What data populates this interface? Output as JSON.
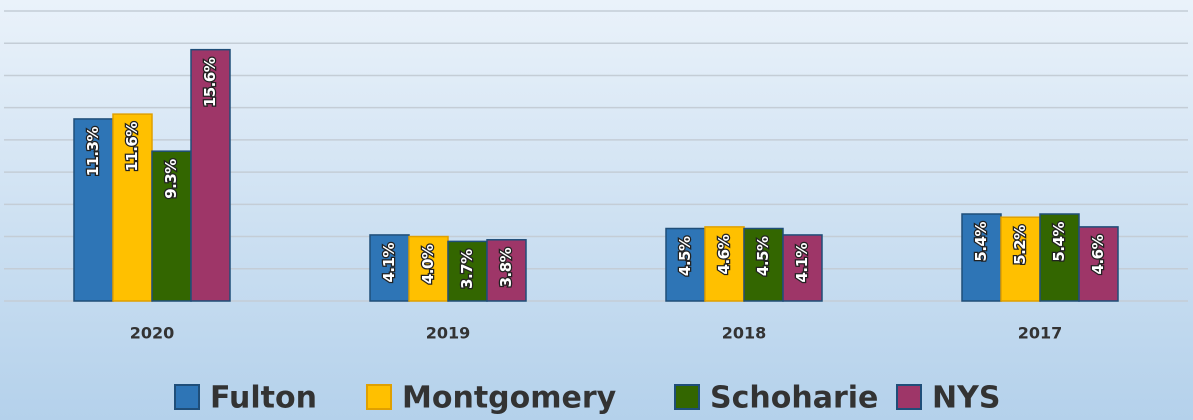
{
  "chart_data": {
    "type": "bar",
    "categories": [
      "2020",
      "2019",
      "2018",
      "2017"
    ],
    "series": [
      {
        "name": "Fulton",
        "color": "#2e75b6",
        "values": [
          11.3,
          4.1,
          4.5,
          5.4
        ],
        "value_labels": [
          "11.3%",
          "4.1%",
          "4.5%",
          "5.4%"
        ]
      },
      {
        "name": "Montgomery",
        "color": "#ffc000",
        "values": [
          11.6,
          4.0,
          4.6,
          5.2
        ],
        "value_labels": [
          "11.6%",
          "4.0%",
          "4.6%",
          "5.2%"
        ]
      },
      {
        "name": "Schoharie",
        "color": "#336600",
        "values": [
          9.3,
          3.7,
          4.5,
          5.4
        ],
        "value_labels": [
          "9.3%",
          "3.7%",
          "4.5%",
          "5.4%"
        ]
      },
      {
        "name": "NYS",
        "color": "#9e3668",
        "values": [
          15.6,
          3.8,
          4.1,
          4.6
        ],
        "value_labels": [
          "15.6%",
          "3.8%",
          "4.1%",
          "4.6%"
        ]
      }
    ],
    "ylim": [
      0,
      18
    ],
    "yticks": [
      0,
      2,
      4,
      6,
      8,
      10,
      12,
      14,
      16,
      18
    ],
    "grid": true,
    "legend": "bottom"
  }
}
